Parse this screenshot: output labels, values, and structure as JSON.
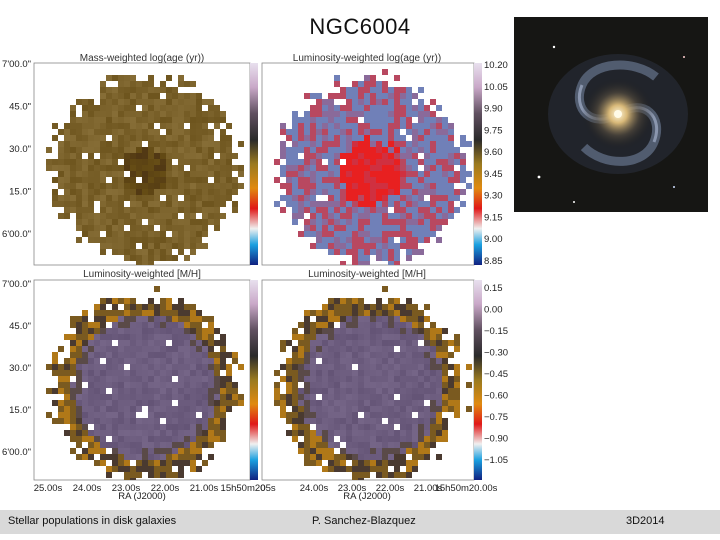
{
  "slide": {
    "title": "NGC6004",
    "footer_left": "Stellar populations in disk galaxies",
    "footer_center": "P. Sanchez-Blazquez",
    "footer_right": "3D2014"
  },
  "panels": {
    "top_left_title": "Mass-weighted log(age (yr))",
    "top_right_title": "Luminosity-weighted log(age (yr))",
    "bottom_left_title": "Luminosity-weighted [M/H]",
    "bottom_right_title": "Luminosity-weighted [M/H]"
  },
  "axes": {
    "dec_ticks_top": [
      "7'00.0\"",
      "45.0\"",
      "30.0\"",
      "15.0\"",
      "6'00.0\""
    ],
    "dec_ticks_bottom": [
      "7'00.0\"",
      "45.0\"",
      "30.0\"",
      "15.0\"",
      "6'00.0\""
    ],
    "ra_ticks_left": [
      "25.00s",
      "24.00s",
      "23.00s",
      "22.00s",
      "21.00s",
      "15h50m20"
    ],
    "ra_ticks_right": [
      "05s",
      "24.00s",
      "23.00s",
      "22.00s",
      "21.00s",
      "15h50m20.00s"
    ],
    "ra_label": "RA (J2000)"
  },
  "colorbar_age": {
    "ticks": [
      "10.20",
      "10.05",
      "9.90",
      "9.75",
      "9.60",
      "9.45",
      "9.30",
      "9.15",
      "9.00",
      "8.85"
    ]
  },
  "colorbar_mh": {
    "ticks": [
      "0.15",
      "0.00",
      "−0.15",
      "−0.30",
      "−0.45",
      "−0.60",
      "−0.75",
      "−0.90",
      "−1.05"
    ]
  },
  "colors": {
    "mass_age_base": "#6b5524",
    "lum_age_base": "#a05078",
    "lum_age_core": "#e02020",
    "mh_core": "#6e5a78",
    "mh_rim": "#7a5a20"
  }
}
